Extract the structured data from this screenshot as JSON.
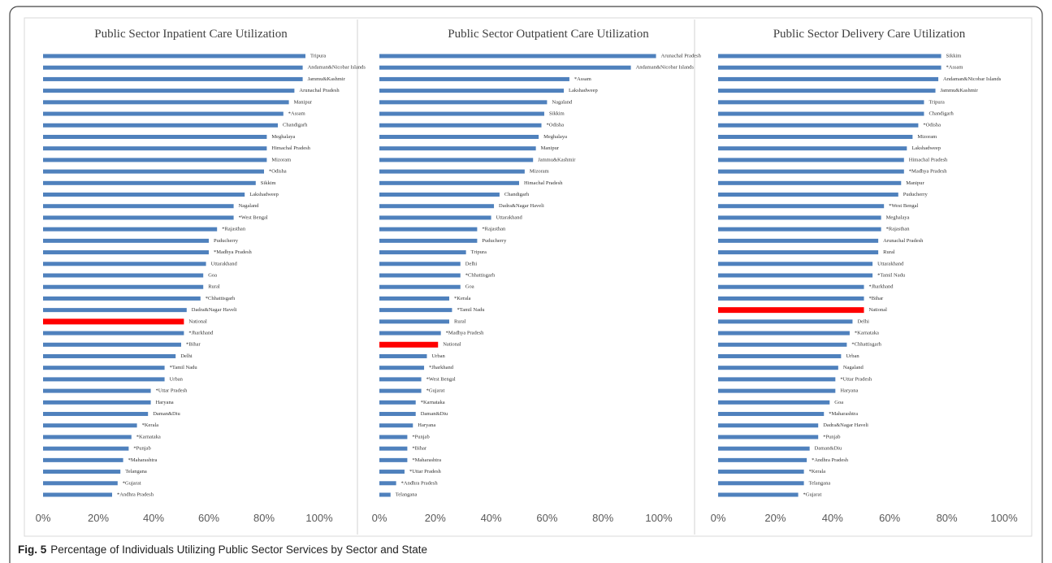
{
  "chart_data": [
    {
      "type": "barh",
      "title": "Public Sector Inpatient Care Utilization",
      "categories": [
        "Tripura",
        "Andaman&Nicobar Islands",
        "Jammu&Kashmir",
        "Arunachal Pradesh",
        "Manipur",
        "*Assam",
        "Chandigarh",
        "Meghalaya",
        "Himachal Pradesh",
        "Mizoram",
        "*Odisha",
        "Sikkim",
        "Lakshadweep",
        "Nagaland",
        "*West Bengal",
        "*Rajasthan",
        "Puducherry",
        "*Madhya Pradesh",
        "Uttarakhand",
        "Goa",
        "Rural",
        "*Chhattisgarh",
        "Dadra&Nagar Haveli",
        "National",
        "*Jharkhand",
        "*Bihar",
        "Delhi",
        "*Tamil Nadu",
        "Urban",
        "*Uttar Pradesh",
        "Haryana",
        "Daman&Diu",
        "*Kerala",
        "*Karnataka",
        "*Punjab",
        "*Maharashtra",
        "Telangana",
        "*Gujarat",
        "*Andhra Pradesh"
      ],
      "values": [
        95,
        94,
        94,
        91,
        89,
        87,
        85,
        81,
        81,
        81,
        80,
        77,
        73,
        69,
        69,
        63,
        60,
        60,
        59,
        58,
        58,
        57,
        52,
        51,
        51,
        50,
        48,
        44,
        44,
        39,
        39,
        38,
        34,
        32,
        31,
        29,
        28,
        27,
        25
      ],
      "color": "#4f81bd",
      "highlight": {
        "index": 23,
        "color": "#ff0000"
      },
      "xlim": [
        0,
        100
      ],
      "xticks": [
        {
          "value": 0,
          "label": "0%"
        },
        {
          "value": 20,
          "label": "20%"
        },
        {
          "value": 40,
          "label": "40%"
        },
        {
          "value": 60,
          "label": "60%"
        },
        {
          "value": 80,
          "label": "80%"
        },
        {
          "value": 100,
          "label": "100%"
        }
      ]
    },
    {
      "type": "barh",
      "title": "Public Sector Outpatient Care Utilization",
      "categories": [
        "Arunachal Pradesh",
        "Andaman&Nicobar Islands",
        "*Assam",
        "Lakshadweep",
        "Nagaland",
        "Sikkim",
        "*Odisha",
        "Meghalaya",
        "Manipur",
        "Jammu&Kashmir",
        "Mizoram",
        "Himachal Pradesh",
        "Chandigarh",
        "Dadra&Nagar Haveli",
        "Uttarakhand",
        "*Rajasthan",
        "Puducherry",
        "Tripura",
        "Delhi",
        "*Chhattisgarh",
        "Goa",
        "*Kerala",
        "*Tamil Nadu",
        "Rural",
        "*Madhya Pradesh",
        "National",
        "Urban",
        "*Jharkhand",
        "*West Bengal",
        "*Gujarat",
        "*Karnataka",
        "Daman&Diu",
        "Haryana",
        "*Punjab",
        "*Bihar",
        "*Maharashtra",
        "*Uttar Pradesh",
        "*Andhra Pradesh",
        "Telangana"
      ],
      "values": [
        99,
        90,
        68,
        66,
        60,
        59,
        58,
        57,
        56,
        55,
        52,
        50,
        43,
        41,
        40,
        35,
        35,
        31,
        29,
        29,
        29,
        25,
        26,
        25,
        22,
        21,
        17,
        16,
        15,
        15,
        13,
        13,
        12,
        10,
        10,
        10,
        9,
        6,
        4
      ],
      "color": "#4f81bd",
      "highlight": {
        "index": 25,
        "color": "#ff0000"
      },
      "xlim": [
        0,
        100
      ],
      "xticks": [
        {
          "value": 0,
          "label": "0%"
        },
        {
          "value": 20,
          "label": "20%"
        },
        {
          "value": 40,
          "label": "40%"
        },
        {
          "value": 60,
          "label": "60%"
        },
        {
          "value": 80,
          "label": "80%"
        },
        {
          "value": 100,
          "label": "100%"
        }
      ]
    },
    {
      "type": "barh",
      "title": "Public Sector Delivery Care Utilization",
      "categories": [
        "Sikkim",
        "*Assam",
        "Andaman&Nicobar Islands",
        "Jammu&Kashmir",
        "Tripura",
        "Chandigarh",
        "*Odisha",
        "Mizoram",
        "Lakshadweep",
        "Himachal Pradesh",
        "*Madhya Pradesh",
        "Manipur",
        "Puducherry",
        "*West Bengal",
        "Meghalaya",
        "*Rajasthan",
        "Arunachal Pradesh",
        "Rural",
        "Uttarakhand",
        "*Tamil Nadu",
        "*Jharkhand",
        "*Bihar",
        "National",
        "Delhi",
        "*Karnataka",
        "*Chhattisgarh",
        "Urban",
        "Nagaland",
        "*Uttar Pradesh",
        "Haryana",
        "Goa",
        "*Maharashtra",
        "Dadra&Nagar Haveli",
        "*Punjab",
        "Daman&Diu",
        "*Andhra Pradesh",
        "*Kerala",
        "Telangana",
        "*Gujarat"
      ],
      "values": [
        78,
        78,
        77,
        76,
        72,
        72,
        70,
        68,
        66,
        65,
        65,
        64,
        63,
        58,
        57,
        57,
        56,
        56,
        54,
        54,
        51,
        51,
        51,
        47,
        46,
        45,
        43,
        42,
        41,
        41,
        39,
        37,
        35,
        35,
        32,
        31,
        30,
        30,
        28
      ],
      "color": "#4f81bd",
      "highlight": {
        "index": 22,
        "color": "#ff0000"
      },
      "xlim": [
        0,
        100
      ],
      "xticks": [
        {
          "value": 0,
          "label": "0%"
        },
        {
          "value": 20,
          "label": "20%"
        },
        {
          "value": 40,
          "label": "40%"
        },
        {
          "value": 60,
          "label": "60%"
        },
        {
          "value": 80,
          "label": "80%"
        },
        {
          "value": 100,
          "label": "100%"
        }
      ]
    }
  ],
  "caption": {
    "label": "Fig. 5",
    "text": "Percentage of Individuals Utilizing Public Sector Services by Sector and State"
  }
}
